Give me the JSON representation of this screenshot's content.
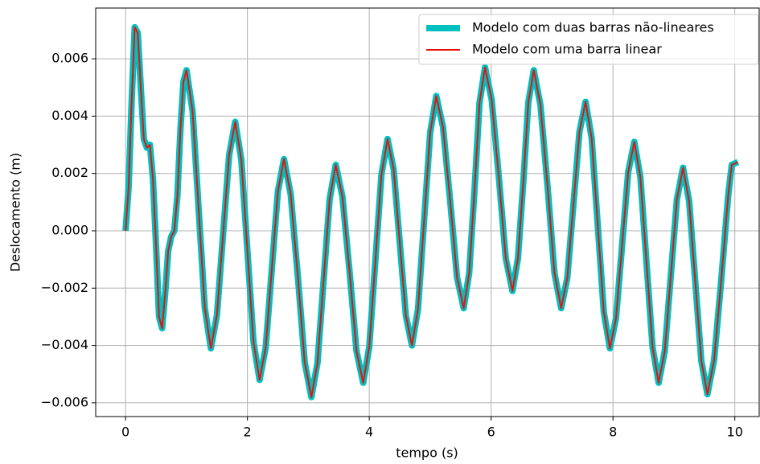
{
  "chart_data": {
    "type": "line",
    "xlabel": "tempo (s)",
    "ylabel": "Deslocamento (m)",
    "x": [
      0,
      0.05,
      0.1,
      0.15,
      0.2,
      0.25,
      0.3,
      0.35,
      0.4,
      0.45,
      0.5,
      0.55,
      0.6,
      0.65,
      0.7,
      0.75,
      0.8,
      0.85,
      0.9,
      0.95,
      1.0,
      1.1,
      1.2,
      1.3,
      1.4,
      1.5,
      1.6,
      1.7,
      1.8,
      1.9,
      2.0,
      2.1,
      2.2,
      2.3,
      2.4,
      2.5,
      2.6,
      2.71,
      2.83,
      2.94,
      3.05,
      3.15,
      3.25,
      3.35,
      3.45,
      3.56,
      3.68,
      3.79,
      3.9,
      4.0,
      4.1,
      4.2,
      4.3,
      4.4,
      4.5,
      4.6,
      4.7,
      4.8,
      4.9,
      5.0,
      5.1,
      5.21,
      5.33,
      5.44,
      5.55,
      5.64,
      5.73,
      5.81,
      5.9,
      6.01,
      6.13,
      6.24,
      6.35,
      6.44,
      6.53,
      6.61,
      6.7,
      6.81,
      6.93,
      7.04,
      7.15,
      7.25,
      7.35,
      7.45,
      7.55,
      7.65,
      7.75,
      7.85,
      7.95,
      8.05,
      8.15,
      8.25,
      8.35,
      8.45,
      8.55,
      8.65,
      8.75,
      8.85,
      8.95,
      9.05,
      9.15,
      9.25,
      9.35,
      9.45,
      9.55,
      9.66,
      9.78,
      9.89,
      9.95,
      10.05
    ],
    "series": [
      {
        "name": "Modelo com duas barras não-lineares",
        "color": "#00bfbf",
        "width": 8,
        "values": [
          0,
          0.0015,
          0.0045,
          0.0071,
          0.0069,
          0.005,
          0.0032,
          0.0029,
          0.003,
          0.0018,
          -0.0005,
          -0.003,
          -0.0034,
          -0.0022,
          -0.0007,
          -0.0002,
          0.0,
          0.0012,
          0.0035,
          0.0052,
          0.0056,
          0.00418,
          0.00075,
          -0.00268,
          -0.0041,
          -0.00294,
          -0.00015,
          0.00264,
          0.0038,
          0.00248,
          -0.0007,
          -0.00388,
          -0.0052,
          -0.00407,
          -0.00135,
          0.00137,
          0.0025,
          0.00128,
          -0.00165,
          -0.00458,
          -0.0058,
          -0.00461,
          -0.00175,
          0.00111,
          0.0023,
          0.00119,
          -0.0015,
          -0.00419,
          -0.0053,
          -0.00405,
          -0.00105,
          0.00196,
          0.0032,
          0.00215,
          -0.0004,
          -0.00295,
          -0.004,
          -0.00273,
          0.00035,
          0.00343,
          0.0047,
          0.00362,
          0.001,
          -0.00162,
          -0.0027,
          -0.00147,
          0.0015,
          0.00447,
          0.0057,
          0.00456,
          0.0018,
          -0.00096,
          -0.0021,
          -0.00097,
          0.00175,
          0.00447,
          0.0056,
          0.00438,
          0.00145,
          -0.00148,
          -0.0027,
          -0.00165,
          0.0009,
          0.00345,
          0.0045,
          0.00324,
          0.0002,
          -0.00284,
          -0.0041,
          -0.00305,
          -0.0005,
          0.00205,
          0.0031,
          0.00187,
          -0.0011,
          -0.00407,
          -0.0053,
          -0.0042,
          -0.00155,
          0.0011,
          0.0022,
          0.00104,
          -0.00175,
          -0.00454,
          -0.0057,
          -0.00451,
          -0.00165,
          0.00121,
          0.0023,
          0.0024
        ]
      },
      {
        "name": "Modelo com uma barra linear",
        "color": "#e8120c",
        "width": 2,
        "values": [
          0,
          0.0015,
          0.0045,
          0.0071,
          0.0069,
          0.005,
          0.0032,
          0.0029,
          0.003,
          0.0018,
          -0.0005,
          -0.003,
          -0.0034,
          -0.0022,
          -0.0007,
          -0.0002,
          0.0,
          0.0012,
          0.0035,
          0.0052,
          0.0056,
          0.00418,
          0.00075,
          -0.00268,
          -0.0041,
          -0.00294,
          -0.00015,
          0.00264,
          0.0038,
          0.00248,
          -0.0007,
          -0.00388,
          -0.0052,
          -0.00407,
          -0.00135,
          0.00137,
          0.0025,
          0.00128,
          -0.00165,
          -0.00458,
          -0.0058,
          -0.00461,
          -0.00175,
          0.00111,
          0.0023,
          0.00119,
          -0.0015,
          -0.00419,
          -0.0053,
          -0.00405,
          -0.00105,
          0.00196,
          0.0032,
          0.00215,
          -0.0004,
          -0.00295,
          -0.004,
          -0.00273,
          0.00035,
          0.00343,
          0.0047,
          0.00362,
          0.001,
          -0.00162,
          -0.0027,
          -0.00147,
          0.0015,
          0.00447,
          0.0057,
          0.00456,
          0.0018,
          -0.00096,
          -0.0021,
          -0.00097,
          0.00175,
          0.00447,
          0.0056,
          0.00438,
          0.00145,
          -0.00148,
          -0.0027,
          -0.00165,
          0.0009,
          0.00345,
          0.0045,
          0.00324,
          0.0002,
          -0.00284,
          -0.0041,
          -0.00305,
          -0.0005,
          0.00205,
          0.0031,
          0.00187,
          -0.0011,
          -0.00407,
          -0.0053,
          -0.0042,
          -0.00155,
          0.0011,
          0.0022,
          0.00104,
          -0.00175,
          -0.00454,
          -0.0057,
          -0.00451,
          -0.00165,
          0.00121,
          0.0023,
          0.0024
        ]
      }
    ],
    "xlim": [
      -0.49,
      10.4
    ],
    "ylim": [
      -0.00648,
      0.00777
    ],
    "xticks": [
      0,
      2,
      4,
      6,
      8,
      10
    ],
    "yticks": [
      {
        "value": -0.006,
        "label": "−0.006"
      },
      {
        "value": -0.004,
        "label": "−0.004"
      },
      {
        "value": -0.002,
        "label": "−0.002"
      },
      {
        "value": 0,
        "label": "0.000"
      },
      {
        "value": 0.002,
        "label": "0.002"
      },
      {
        "value": 0.004,
        "label": "0.004"
      },
      {
        "value": 0.006,
        "label": "0.006"
      }
    ],
    "grid": true,
    "legend": "upper right"
  }
}
